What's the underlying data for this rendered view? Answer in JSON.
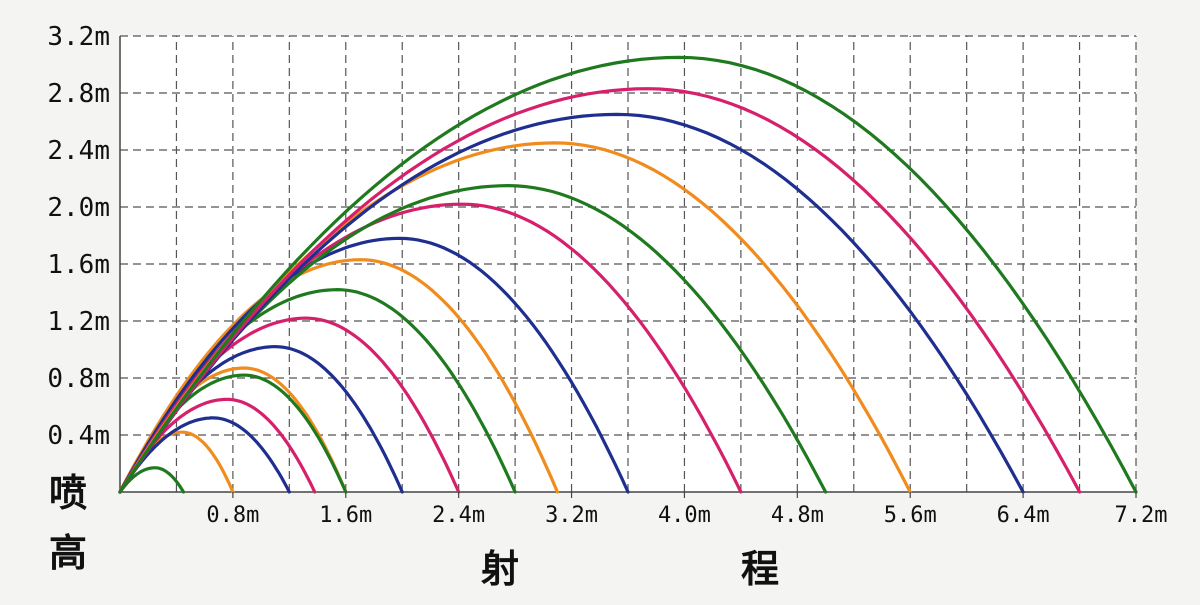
{
  "chart_data": {
    "type": "line",
    "title": "",
    "xlabel_parts": [
      "射",
      "程"
    ],
    "ylabel_parts": [
      "喷",
      "高"
    ],
    "xlim": [
      0,
      7.2
    ],
    "ylim": [
      0,
      3.2
    ],
    "x_ticks": [
      0.8,
      1.6,
      2.4,
      3.2,
      4.0,
      4.8,
      5.6,
      6.4,
      7.2
    ],
    "x_tick_labels": [
      "0.8m",
      "1.6m",
      "2.4m",
      "3.2m",
      "4.0m",
      "4.8m",
      "5.6m",
      "6.4m",
      "7.2m"
    ],
    "y_ticks": [
      0.4,
      0.8,
      1.2,
      1.6,
      2.0,
      2.4,
      2.8,
      3.2
    ],
    "y_tick_labels": [
      "0.4m",
      "0.8m",
      "1.2m",
      "1.6m",
      "2.0m",
      "2.4m",
      "2.8m",
      "3.2m"
    ],
    "grid": "dashed",
    "colors": {
      "green": "#1f7a1f",
      "pink": "#d6206b",
      "navy": "#1f2f8f",
      "orange": "#f08c1e",
      "axes": "#444444"
    },
    "series": [
      {
        "color": "green",
        "range": 0.45,
        "peak": 0.17
      },
      {
        "color": "orange",
        "range": 0.8,
        "peak": 0.42
      },
      {
        "color": "navy",
        "range": 1.2,
        "peak": 0.52
      },
      {
        "color": "pink",
        "range": 1.38,
        "peak": 0.65
      },
      {
        "color": "orange",
        "range": 1.6,
        "peak": 0.87
      },
      {
        "color": "green",
        "range": 1.6,
        "peak": 0.82
      },
      {
        "color": "navy",
        "range": 2.0,
        "peak": 1.02
      },
      {
        "color": "pink",
        "range": 2.4,
        "peak": 1.22
      },
      {
        "color": "green",
        "range": 2.8,
        "peak": 1.42
      },
      {
        "color": "orange",
        "range": 3.1,
        "peak": 1.63
      },
      {
        "color": "navy",
        "range": 3.6,
        "peak": 1.78
      },
      {
        "color": "pink",
        "range": 4.4,
        "peak": 2.02
      },
      {
        "color": "green",
        "range": 5.0,
        "peak": 2.15
      },
      {
        "color": "orange",
        "range": 5.6,
        "peak": 2.45
      },
      {
        "color": "navy",
        "range": 6.4,
        "peak": 2.65
      },
      {
        "color": "pink",
        "range": 6.8,
        "peak": 2.83
      },
      {
        "color": "green",
        "range": 7.2,
        "peak": 3.05
      }
    ]
  }
}
